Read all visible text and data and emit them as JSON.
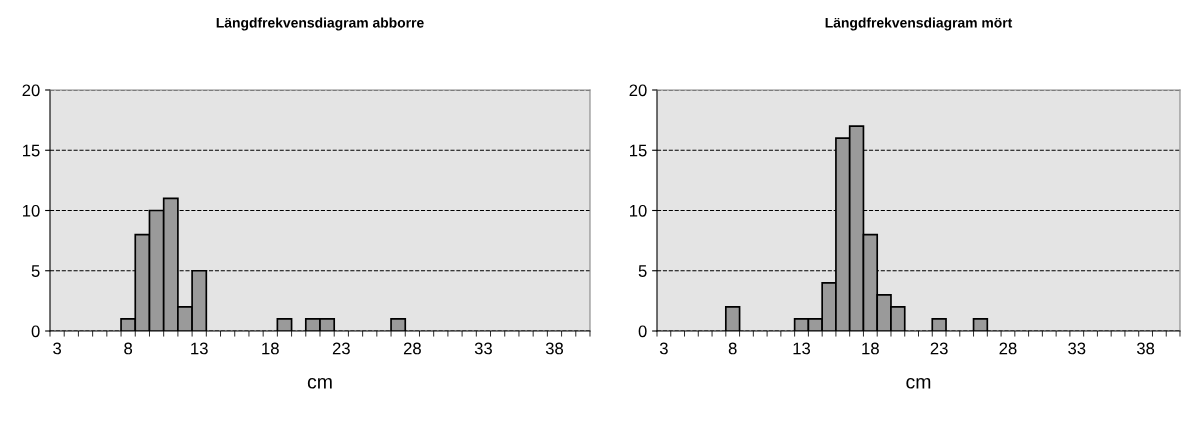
{
  "chart_data": [
    {
      "type": "bar",
      "title": "Längdfrekvensdiagram abborre",
      "xlabel": "cm",
      "categories": [
        "3",
        null,
        null,
        null,
        null,
        "8",
        null,
        null,
        null,
        null,
        "13",
        null,
        null,
        null,
        null,
        "18",
        null,
        null,
        null,
        null,
        "23",
        null,
        null,
        null,
        null,
        "28",
        null,
        null,
        null,
        null,
        "33",
        null,
        null,
        null,
        null,
        "38",
        null,
        null
      ],
      "values": [
        0,
        0,
        0,
        0,
        0,
        1,
        8,
        10,
        11,
        2,
        5,
        0,
        0,
        0,
        0,
        0,
        1,
        0,
        1,
        1,
        0,
        0,
        0,
        0,
        1,
        0,
        0,
        0,
        0,
        0,
        0,
        0,
        0,
        0,
        0,
        0,
        0,
        0
      ],
      "color": "#9a9a9a",
      "ylim": [
        0,
        20
      ],
      "yticks": [
        0,
        5,
        10,
        15,
        20
      ],
      "grid": "y",
      "line_style": "dashed"
    },
    {
      "type": "bar",
      "title": "Längdfrekvensdiagram mört",
      "xlabel": "cm",
      "categories": [
        "3",
        null,
        null,
        null,
        null,
        "8",
        null,
        null,
        null,
        null,
        "13",
        null,
        null,
        null,
        null,
        "18",
        null,
        null,
        null,
        null,
        "23",
        null,
        null,
        null,
        null,
        "28",
        null,
        null,
        null,
        null,
        "33",
        null,
        null,
        null,
        null,
        "38",
        null,
        null
      ],
      "values": [
        0,
        0,
        0,
        0,
        0,
        2,
        0,
        0,
        0,
        0,
        1,
        1,
        4,
        16,
        17,
        8,
        3,
        2,
        0,
        0,
        1,
        0,
        0,
        1,
        0,
        0,
        0,
        0,
        0,
        0,
        0,
        0,
        0,
        0,
        0,
        0,
        0,
        0
      ],
      "color": "#9a9a9a",
      "ylim": [
        0,
        20
      ],
      "yticks": [
        0,
        5,
        10,
        15,
        20
      ],
      "grid": "y",
      "line_style": "dashed"
    }
  ]
}
